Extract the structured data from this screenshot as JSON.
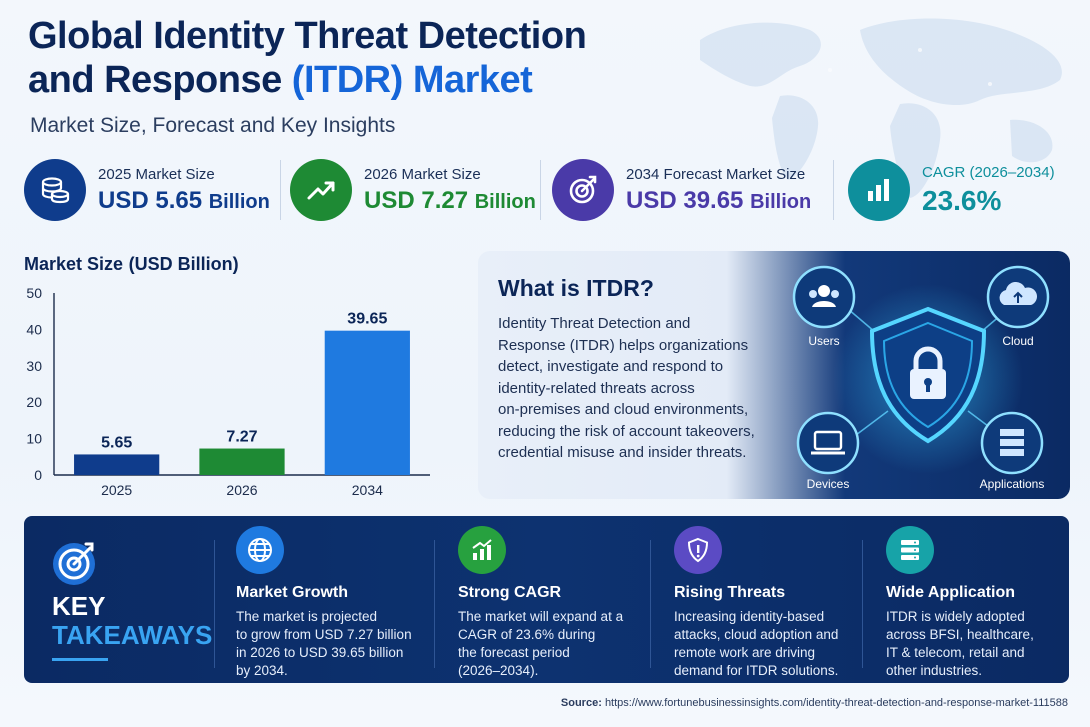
{
  "header": {
    "title_line1": "Global Identity Threat Detection",
    "title_line2_pre": "and Response ",
    "title_line2_accent": "(ITDR) Market",
    "subtitle": "Market Size, Forecast and Key Insights"
  },
  "kpis": [
    {
      "label": "2025 Market Size",
      "value": "USD 5.65",
      "unit": "Billion",
      "color": "#0f3c8c"
    },
    {
      "label": "2026 Market Size",
      "value": "USD 7.27",
      "unit": "Billion",
      "color": "#1e8a34"
    },
    {
      "label": "2034 Forecast Market Size",
      "value": "USD 39.65",
      "unit": "Billion",
      "color": "#4a3aa8"
    },
    {
      "label": "CAGR (2026–2034)",
      "value": "23.6%",
      "unit": "",
      "color": "#0e8f9c"
    }
  ],
  "chart_data": {
    "type": "bar",
    "title": "Market Size",
    "title_unit": "(USD Billion)",
    "categories": [
      "2025",
      "2026",
      "2034"
    ],
    "values": [
      5.65,
      7.27,
      39.65
    ],
    "data_labels": [
      "5.65",
      "7.27",
      "39.65"
    ],
    "bar_colors": [
      "#0f3c8c",
      "#1e8a34",
      "#1f7ae0"
    ],
    "ylim": [
      0,
      50
    ],
    "yticks": [
      0,
      10,
      20,
      30,
      40,
      50
    ],
    "grid": false,
    "xlabel": "",
    "ylabel": ""
  },
  "itdr": {
    "heading": "What is ITDR?",
    "lines": [
      "Identity Threat Detection and",
      "Response (ITDR) helps organizations",
      "detect, investigate and respond to",
      "identity-related threats across",
      "on-premises and cloud environments,",
      "reducing the risk of account takeovers,",
      "credential misuse and insider threats."
    ],
    "nodes": [
      "Users",
      "Cloud",
      "Devices",
      "Applications"
    ]
  },
  "takeaways": {
    "key_word": "KEY",
    "takeaways_word": "TAKEAWAYS",
    "items": [
      {
        "icon": "globe-icon",
        "color": "#1f7ae0",
        "title": "Market Growth",
        "lines": [
          "The market is projected",
          "to grow from USD 7.27 billion",
          "in 2026 to USD 39.65 billion",
          "by 2034."
        ]
      },
      {
        "icon": "growth-chart-icon",
        "color": "#27a13f",
        "title": "Strong CAGR",
        "lines": [
          "The market will expand at a",
          "CAGR of 23.6% during",
          "the forecast period",
          "(2026–2034)."
        ]
      },
      {
        "icon": "shield-alert-icon",
        "color": "#5b4bc4",
        "title": "Rising Threats",
        "lines": [
          "Increasing identity-based",
          "attacks, cloud adoption and",
          "remote work are driving",
          "demand for ITDR solutions."
        ]
      },
      {
        "icon": "server-icon",
        "color": "#17a3a8",
        "title": "Wide Application",
        "lines": [
          "ITDR is widely adopted",
          "across BFSI, healthcare,",
          "IT & telecom, retail and",
          "other industries."
        ]
      }
    ]
  },
  "source": {
    "label": "Source:",
    "url": "https://www.fortunebusinessinsights.com/identity-threat-detection-and-response-market-111588"
  }
}
